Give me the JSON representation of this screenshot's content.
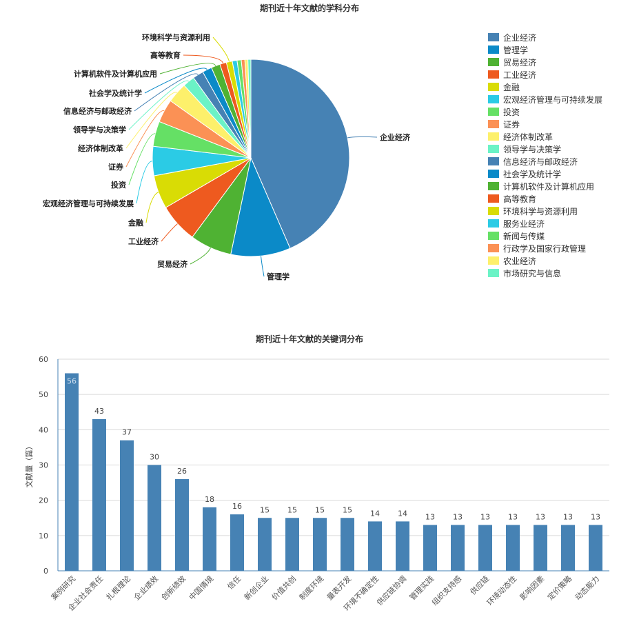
{
  "pie": {
    "title": "期刊近十年文献的学科分布"
  },
  "bar": {
    "title": "期刊近十年文献的关键词分布"
  },
  "chart_data": [
    {
      "type": "pie",
      "title": "期刊近十年文献的学科分布",
      "legend_position": "right",
      "slices": [
        {
          "label": "企业经济",
          "value": 44.4,
          "color": "#4682b4"
        },
        {
          "label": "管理学",
          "value": 10.0,
          "color": "#0b8ac8"
        },
        {
          "label": "贸易经济",
          "value": 7.0,
          "color": "#4fb233"
        },
        {
          "label": "工业经济",
          "value": 6.6,
          "color": "#ee5a1f"
        },
        {
          "label": "金融",
          "value": 5.6,
          "color": "#d9dc05"
        },
        {
          "label": "宏观经济管理与可持续发展",
          "value": 4.9,
          "color": "#2bcbe5"
        },
        {
          "label": "投资",
          "value": 4.2,
          "color": "#65e065"
        },
        {
          "label": "证券",
          "value": 3.9,
          "color": "#fb9155"
        },
        {
          "label": "经济体制改革",
          "value": 3.4,
          "color": "#fdf06b"
        },
        {
          "label": "领导学与决策学",
          "value": 2.0,
          "color": "#6bf3c6"
        },
        {
          "label": "信息经济与邮政经济",
          "value": 1.8,
          "color": "#4682b4"
        },
        {
          "label": "社会学及统计学",
          "value": 1.6,
          "color": "#0b8ac8"
        },
        {
          "label": "计算机软件及计算机应用",
          "value": 1.5,
          "color": "#4fb233"
        },
        {
          "label": "高等教育",
          "value": 1.1,
          "color": "#ee5a1f"
        },
        {
          "label": "环境科学与资源利用",
          "value": 1.0,
          "color": "#d9dc05"
        },
        {
          "label": "服务业经济",
          "value": 0.8,
          "color": "#2bcbe5"
        },
        {
          "label": "新闻与传媒",
          "value": 0.7,
          "color": "#65e065"
        },
        {
          "label": "行政学及国家行政管理",
          "value": 0.6,
          "color": "#fb9155"
        },
        {
          "label": "农业经济",
          "value": 0.5,
          "color": "#fdf06b"
        },
        {
          "label": "市场研究与信息",
          "value": 0.5,
          "color": "#6bf3c6"
        }
      ],
      "outside_labels": [
        "企业经济",
        "管理学",
        "贸易经济",
        "工业经济",
        "金融",
        "宏观经济管理与可持续发展",
        "投资",
        "证券",
        "经济体制改革",
        "领导学与决策学",
        "信息经济与邮政经济",
        "社会学及统计学",
        "计算机软件及计算机应用",
        "高等教育",
        "环境科学与资源利用"
      ]
    },
    {
      "type": "bar",
      "title": "期刊近十年文献的关键词分布",
      "xlabel": "",
      "ylabel": "文献量（篇）",
      "ylim": [
        0,
        60
      ],
      "yticks": [
        0,
        10,
        20,
        30,
        40,
        50,
        60
      ],
      "grid": true,
      "bar_color": "#4682b4",
      "categories": [
        "案例研究",
        "企业社会责任",
        "扎根理论",
        "企业绩效",
        "创新绩效",
        "中国情境",
        "信任",
        "新创企业",
        "价值共创",
        "制度环境",
        "量表开发",
        "环境不确定性",
        "供应链协调",
        "管理实践",
        "组织支持感",
        "供应链",
        "环境动态性",
        "影响因素",
        "定价策略",
        "动态能力"
      ],
      "values": [
        56,
        43,
        37,
        30,
        26,
        18,
        16,
        15,
        15,
        15,
        15,
        14,
        14,
        13,
        13,
        13,
        13,
        13,
        13,
        13
      ]
    }
  ]
}
